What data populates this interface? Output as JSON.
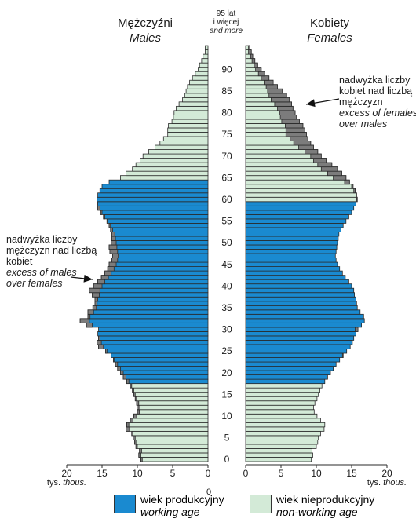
{
  "header": {
    "males_pl": "Mężczyźni",
    "males_en": "Males",
    "females_pl": "Kobiety",
    "females_en": "Females",
    "top_age_line1": "95 lat",
    "top_age_line2": "i więcej",
    "top_age_line3": "and more"
  },
  "annotations": {
    "males_excess": [
      "nadwyżka liczby",
      "mężczyzn nad liczbą",
      "kobiet",
      "excess of males",
      "over females"
    ],
    "females_excess": [
      "nadwyżka liczby",
      "kobiet nad liczbą",
      "mężczyzn",
      "excess of females",
      "over males"
    ]
  },
  "axis": {
    "unit_pl": "tys.",
    "unit_en": "thous.",
    "male_ticks": [
      "20",
      "15",
      "10",
      "5",
      "0"
    ],
    "female_ticks": [
      "0",
      "5",
      "10",
      "15",
      "20"
    ],
    "age_ticks": [
      "0",
      "5",
      "10",
      "15",
      "20",
      "25",
      "30",
      "35",
      "40",
      "45",
      "50",
      "55",
      "60",
      "65",
      "70",
      "75",
      "80",
      "85",
      "90"
    ]
  },
  "legend": {
    "working_pl": "wiek produkcyjny",
    "working_en": "working age",
    "nonworking_pl": "wiek nieprodukcyjny",
    "nonworking_en": "non-working age"
  },
  "colors": {
    "working": "#1a8ad0",
    "nonworking": "#d3ead7",
    "excess": "#7c7c7c",
    "outline": "#2a2a2a"
  },
  "chart_data": {
    "type": "bar",
    "orientation": "horizontal-pyramid",
    "unit": "thousands",
    "xlim": [
      0,
      20
    ],
    "working_age_male": [
      18,
      64
    ],
    "working_age_female": [
      18,
      59
    ],
    "ages": [
      0,
      1,
      2,
      3,
      4,
      5,
      6,
      7,
      8,
      9,
      10,
      11,
      12,
      13,
      14,
      15,
      16,
      17,
      18,
      19,
      20,
      21,
      22,
      23,
      24,
      25,
      26,
      27,
      28,
      29,
      30,
      31,
      32,
      33,
      34,
      35,
      36,
      37,
      38,
      39,
      40,
      41,
      42,
      43,
      44,
      45,
      46,
      47,
      48,
      49,
      50,
      51,
      52,
      53,
      54,
      55,
      56,
      57,
      58,
      59,
      60,
      61,
      62,
      63,
      64,
      65,
      66,
      67,
      68,
      69,
      70,
      71,
      72,
      73,
      74,
      75,
      76,
      77,
      78,
      79,
      80,
      81,
      82,
      83,
      84,
      85,
      86,
      87,
      88,
      89,
      90,
      91,
      92,
      93,
      94,
      95
    ],
    "series": [
      {
        "name": "Mężczyźni",
        "values": [
          9.5,
          9.8,
          9.7,
          10.2,
          10.4,
          10.6,
          10.8,
          11.6,
          11.5,
          11.0,
          10.5,
          10.0,
          9.9,
          10.1,
          10.3,
          10.5,
          10.7,
          11.0,
          11.5,
          12.0,
          12.4,
          12.8,
          13.1,
          13.4,
          13.7,
          14.5,
          15.5,
          15.7,
          15.5,
          15.6,
          15.5,
          17.2,
          18.1,
          17.0,
          17.0,
          16.3,
          16.0,
          16.0,
          16.4,
          16.8,
          16.2,
          15.6,
          15.1,
          14.6,
          14.2,
          14.0,
          13.6,
          13.5,
          13.9,
          14.0,
          13.7,
          13.6,
          13.6,
          13.8,
          14.0,
          14.3,
          14.8,
          15.2,
          15.6,
          15.7,
          15.7,
          15.6,
          15.3,
          15.0,
          14.0,
          12.4,
          11.6,
          10.7,
          10.2,
          9.6,
          9.2,
          8.4,
          7.5,
          6.8,
          6.3,
          5.7,
          5.7,
          5.6,
          5.1,
          4.9,
          4.8,
          4.5,
          4.1,
          3.6,
          3.3,
          3.1,
          2.9,
          2.6,
          2.2,
          1.8,
          1.4,
          1.2,
          0.9,
          0.7,
          0.4,
          0.4
        ]
      },
      {
        "name": "Kobiety",
        "values": [
          9.3,
          9.5,
          9.4,
          10.0,
          10.2,
          10.3,
          10.6,
          11.1,
          11.2,
          10.6,
          10.1,
          9.7,
          9.6,
          9.8,
          10.1,
          10.3,
          10.5,
          10.8,
          11.2,
          11.6,
          12.0,
          12.4,
          12.8,
          13.3,
          13.8,
          14.3,
          14.8,
          15.1,
          15.3,
          15.6,
          15.9,
          16.4,
          16.8,
          16.7,
          16.2,
          15.8,
          15.7,
          15.6,
          15.4,
          15.3,
          15.0,
          14.6,
          14.1,
          13.7,
          13.3,
          13.0,
          12.8,
          12.7,
          12.8,
          12.9,
          13.0,
          13.1,
          13.2,
          13.5,
          13.8,
          14.2,
          14.6,
          15.0,
          15.3,
          15.6,
          15.8,
          15.7,
          15.5,
          15.2,
          14.7,
          14.2,
          13.6,
          13.0,
          12.2,
          11.4,
          10.7,
          10.2,
          9.6,
          9.2,
          8.8,
          8.6,
          8.4,
          8.1,
          7.6,
          7.2,
          7.0,
          6.7,
          6.5,
          6.2,
          5.8,
          5.2,
          4.5,
          3.9,
          3.3,
          2.7,
          2.2,
          1.7,
          1.3,
          1.0,
          0.8,
          0.6
        ]
      }
    ]
  }
}
